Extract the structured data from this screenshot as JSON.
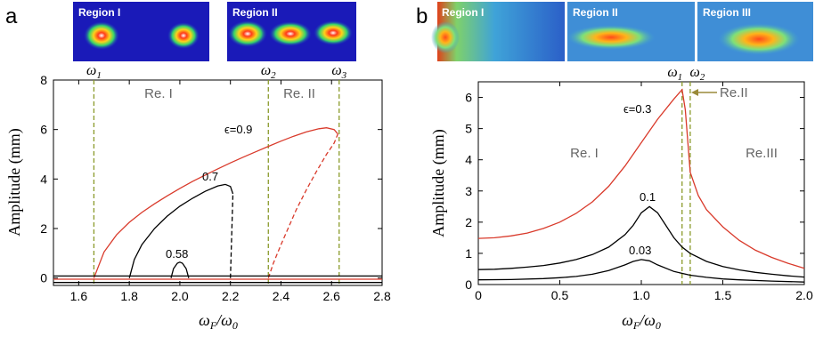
{
  "panels": {
    "a": {
      "letter": "a"
    },
    "b": {
      "letter": "b"
    }
  },
  "images_a": [
    {
      "label": "Region I"
    },
    {
      "label": "Region II"
    }
  ],
  "images_b": [
    {
      "label": "Region I"
    },
    {
      "label": "Region II"
    },
    {
      "label": "Region III"
    }
  ],
  "chart_data": [
    {
      "type": "line",
      "panel": "a",
      "xlabel": "ω_F/ω_0",
      "ylabel": "Amplitude (mm)",
      "xlim": [
        1.5,
        2.8
      ],
      "ylim": [
        -0.3,
        8
      ],
      "xticks": [
        "1.6",
        "1.8",
        "2.0",
        "2.2",
        "2.4",
        "2.6",
        "2.8"
      ],
      "yticks": [
        "0",
        "2",
        "4",
        "6",
        "8"
      ],
      "region_labels": [
        "Re. I",
        "Re. II"
      ],
      "vlines": [
        {
          "label": "ω1",
          "x": 1.66
        },
        {
          "label": "ω2",
          "x": 2.35
        },
        {
          "label": "ω3",
          "x": 2.63
        }
      ],
      "curve_labels": [
        {
          "text": "ϵ=0.9",
          "color": "#d93a2b"
        },
        {
          "text": "0.7",
          "color": "#000000"
        },
        {
          "text": "0.58",
          "color": "#000000"
        }
      ],
      "series": [
        {
          "label_ref": "ϵ=0.9",
          "color": "#d93a2b",
          "dashed": false,
          "x": [
            1.66,
            1.7,
            1.75,
            1.8,
            1.85,
            1.9,
            1.95,
            2.0,
            2.05,
            2.1,
            2.15,
            2.2,
            2.25,
            2.3,
            2.35,
            2.4,
            2.45,
            2.5,
            2.55,
            2.58,
            2.61,
            2.625
          ],
          "y": [
            0,
            1.05,
            1.75,
            2.25,
            2.65,
            3.0,
            3.32,
            3.62,
            3.9,
            4.16,
            4.41,
            4.65,
            4.88,
            5.1,
            5.32,
            5.53,
            5.73,
            5.9,
            6.03,
            6.07,
            6.0,
            5.82
          ]
        },
        {
          "label_ref": "ϵ=0.9",
          "color": "#d93a2b",
          "dashed": true,
          "x": [
            2.35,
            2.37,
            2.4,
            2.43,
            2.46,
            2.5,
            2.54,
            2.58,
            2.61,
            2.625
          ],
          "y": [
            0,
            0.6,
            1.35,
            2.05,
            2.75,
            3.55,
            4.3,
            5.0,
            5.45,
            5.82
          ]
        },
        {
          "label_ref": "0.7",
          "color": "#000000",
          "dashed": false,
          "x": [
            1.8,
            1.82,
            1.85,
            1.9,
            1.95,
            2.0,
            2.05,
            2.1,
            2.15,
            2.18,
            2.2,
            2.21
          ],
          "y": [
            0,
            0.75,
            1.35,
            2.0,
            2.5,
            2.9,
            3.22,
            3.5,
            3.72,
            3.78,
            3.7,
            3.4
          ]
        },
        {
          "label_ref": "0.7",
          "color": "#000000",
          "dashed": true,
          "x": [
            2.2,
            2.205,
            2.21
          ],
          "y": [
            0,
            1.7,
            3.4
          ]
        },
        {
          "label_ref": "0.58",
          "color": "#000000",
          "dashed": false,
          "x": [
            1.965,
            1.975,
            1.99,
            2.0,
            2.01,
            2.025,
            2.035
          ],
          "y": [
            0,
            0.38,
            0.6,
            0.64,
            0.6,
            0.38,
            0
          ]
        },
        {
          "color": "#000000",
          "dashed": false,
          "x": [
            1.5,
            2.8
          ],
          "y": [
            0.08,
            0.08
          ]
        },
        {
          "color": "#d93a2b",
          "dashed": false,
          "x": [
            1.5,
            2.8
          ],
          "y": [
            -0.05,
            -0.05
          ]
        },
        {
          "color": "#000000",
          "dashed": false,
          "x": [
            1.5,
            2.8
          ],
          "y": [
            -0.18,
            -0.18
          ]
        }
      ]
    },
    {
      "type": "line",
      "panel": "b",
      "xlabel": "ω_F/ω_0",
      "ylabel": "Amplitude (mm)",
      "xlim": [
        0,
        2.0
      ],
      "ylim": [
        0,
        6.5
      ],
      "xticks": [
        "0",
        "0.5",
        "1.0",
        "1.5",
        "2.0"
      ],
      "yticks": [
        "0",
        "1",
        "2",
        "3",
        "4",
        "5",
        "6"
      ],
      "region_labels": [
        "Re. I",
        "Re.II",
        "Re.III"
      ],
      "vlines": [
        {
          "label": "ω1",
          "x": 1.25
        },
        {
          "label": "ω2",
          "x": 1.3
        }
      ],
      "curve_labels": [
        {
          "text": "ϵ=0.3",
          "color": "#000000"
        },
        {
          "text": "0.1",
          "color": "#000000"
        },
        {
          "text": "0.03",
          "color": "#000000"
        }
      ],
      "series": [
        {
          "label_ref": "ϵ=0.3",
          "color": "#d93a2b",
          "dashed": false,
          "x": [
            0,
            0.1,
            0.2,
            0.3,
            0.4,
            0.5,
            0.6,
            0.7,
            0.8,
            0.9,
            1.0,
            1.1,
            1.2,
            1.25,
            1.27,
            1.3,
            1.35,
            1.4,
            1.5,
            1.6,
            1.7,
            1.8,
            1.9,
            2.0
          ],
          "y": [
            1.48,
            1.5,
            1.56,
            1.65,
            1.8,
            2.0,
            2.28,
            2.65,
            3.15,
            3.8,
            4.55,
            5.3,
            5.95,
            6.25,
            5.6,
            3.6,
            2.85,
            2.4,
            1.85,
            1.42,
            1.1,
            0.87,
            0.68,
            0.52
          ]
        },
        {
          "label_ref": "0.1",
          "color": "#000000",
          "dashed": false,
          "x": [
            0,
            0.1,
            0.2,
            0.3,
            0.4,
            0.5,
            0.6,
            0.7,
            0.8,
            0.9,
            0.95,
            1.0,
            1.05,
            1.1,
            1.15,
            1.2,
            1.25,
            1.3,
            1.4,
            1.5,
            1.6,
            1.7,
            1.8,
            1.9,
            2.0
          ],
          "y": [
            0.48,
            0.49,
            0.52,
            0.56,
            0.61,
            0.69,
            0.8,
            0.96,
            1.2,
            1.6,
            1.9,
            2.3,
            2.5,
            2.3,
            1.9,
            1.5,
            1.2,
            1.0,
            0.74,
            0.58,
            0.47,
            0.39,
            0.33,
            0.28,
            0.24
          ]
        },
        {
          "label_ref": "0.03",
          "color": "#000000",
          "dashed": false,
          "x": [
            0,
            0.2,
            0.4,
            0.5,
            0.6,
            0.7,
            0.8,
            0.9,
            0.95,
            1.0,
            1.05,
            1.1,
            1.2,
            1.3,
            1.4,
            1.5,
            1.6,
            1.8,
            2.0
          ],
          "y": [
            0.15,
            0.16,
            0.19,
            0.22,
            0.26,
            0.33,
            0.45,
            0.63,
            0.74,
            0.8,
            0.76,
            0.63,
            0.42,
            0.3,
            0.23,
            0.18,
            0.15,
            0.11,
            0.08
          ]
        }
      ]
    }
  ]
}
